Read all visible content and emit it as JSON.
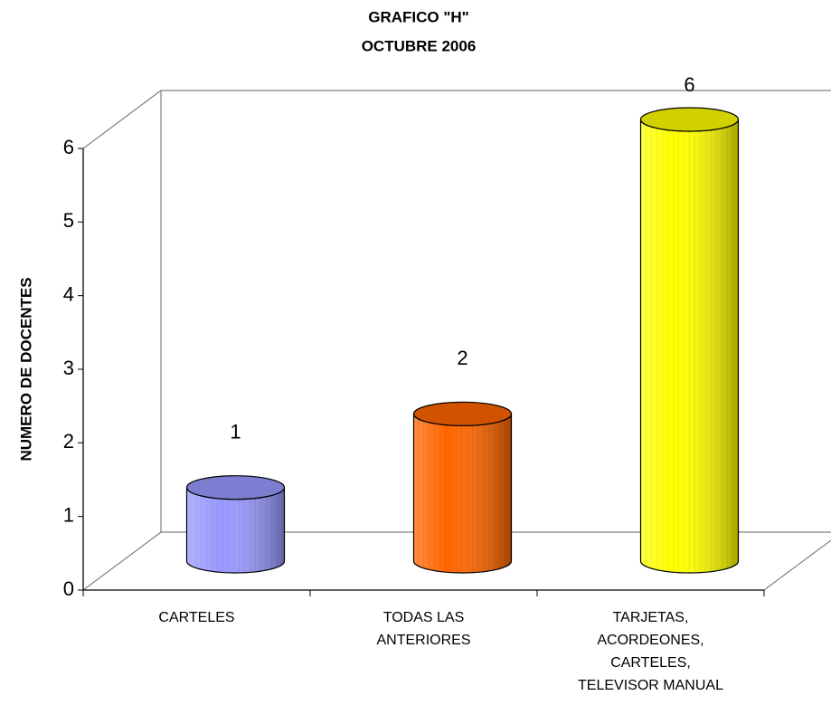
{
  "chart_data": {
    "type": "bar3d-cylinder",
    "title": "GRAFICO \"H\"",
    "subtitle": "OCTUBRE 2006",
    "y_label": "NUMERO DE DOCENTES",
    "categories": [
      [
        "CARTELES"
      ],
      [
        "TODAS LAS",
        "ANTERIORES"
      ],
      [
        "TARJETAS,",
        "ACORDEONES,",
        "CARTELES,",
        "TELEVISOR MANUAL"
      ]
    ],
    "values": [
      1,
      2,
      6
    ],
    "colors": [
      "#9999ff",
      "#ff6600",
      "#ffff00"
    ],
    "ylim": [
      0,
      6
    ],
    "yticks": [
      0,
      1,
      2,
      3,
      4,
      5,
      6
    ]
  }
}
